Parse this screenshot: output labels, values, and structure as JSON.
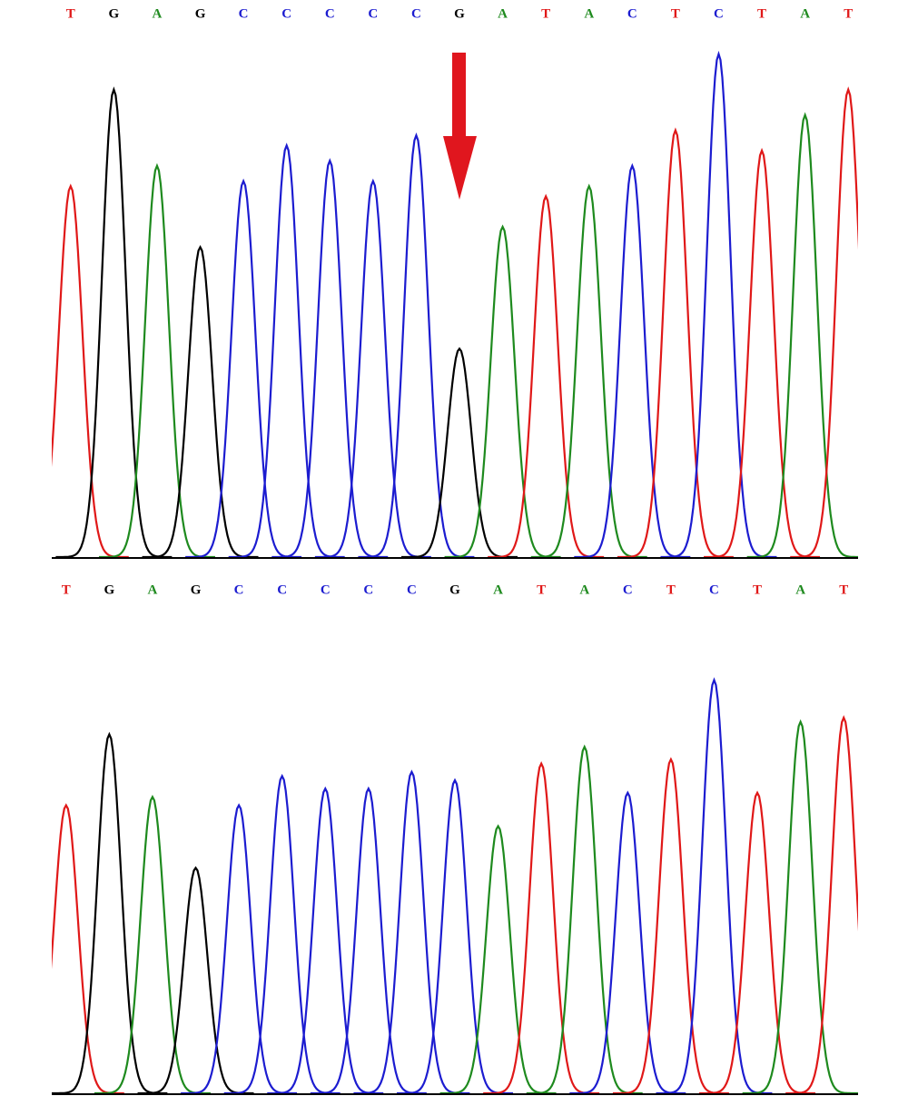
{
  "chart_data": [
    {
      "type": "chromatogram",
      "categories": [
        "T",
        "G",
        "A",
        "G",
        "C",
        "C",
        "C",
        "C",
        "C",
        "G",
        "A",
        "T",
        "A",
        "C",
        "T",
        "C",
        "T",
        "A",
        "T"
      ],
      "peak_channels": [
        "T",
        "G",
        "A",
        "G",
        "C",
        "C",
        "C",
        "C",
        "C",
        "G",
        "A",
        "T",
        "A",
        "C",
        "T",
        "C",
        "T",
        "A",
        "T"
      ],
      "values": [
        73,
        92,
        77,
        61,
        74,
        81,
        78,
        74,
        83,
        41,
        65,
        71,
        73,
        77,
        84,
        99,
        80,
        87,
        92
      ],
      "ylim": [
        0,
        100
      ],
      "base_colors": {
        "A": "#1e8a1e",
        "C": "#1c1cd0",
        "G": "#000000",
        "T": "#e01818"
      },
      "highlight_index": 9
    },
    {
      "type": "chromatogram",
      "categories": [
        "T",
        "G",
        "A",
        "G",
        "C",
        "C",
        "C",
        "C",
        "C",
        "G",
        "A",
        "T",
        "A",
        "C",
        "T",
        "C",
        "T",
        "A",
        "T"
      ],
      "peak_channels": [
        "T",
        "G",
        "A",
        "G",
        "C",
        "C",
        "C",
        "C",
        "C",
        "C",
        "A",
        "T",
        "A",
        "C",
        "T",
        "C",
        "T",
        "A",
        "T"
      ],
      "values": [
        69,
        86,
        71,
        54,
        69,
        76,
        73,
        73,
        77,
        75,
        64,
        79,
        83,
        72,
        80,
        99,
        72,
        89,
        90
      ],
      "ylim": [
        0,
        100
      ],
      "base_colors": {
        "A": "#1e8a1e",
        "C": "#1c1cd0",
        "G": "#000000",
        "T": "#e01818"
      }
    }
  ]
}
